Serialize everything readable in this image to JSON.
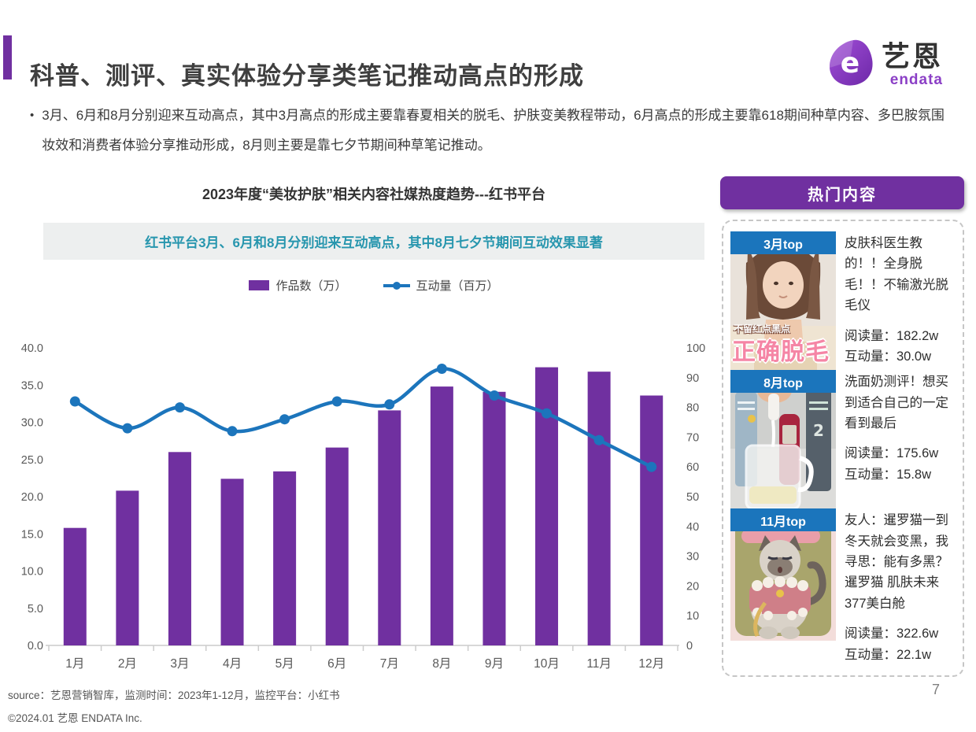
{
  "colors": {
    "accent": "#7030A0",
    "bar": "#7030A0",
    "line": "#1C75BC",
    "badge": "#1B75BC",
    "callout_bg": "#EDEFEF",
    "callout_text": "#2796AE"
  },
  "header": {
    "title": "科普、测评、真实体验分享类笔记推动高点的形成",
    "logo_cn": "艺恩",
    "logo_en": "endata"
  },
  "bullet": {
    "marker": "•",
    "text": "3月、6月和8月分别迎来互动高点，其中3月高点的形成主要靠春夏相关的脱毛、护肤变美教程带动，6月高点的形成主要靠618期间种草内容、多巴胺氛围妆效和消费者体验分享推动形成，8月则主要是靠七夕节期间种草笔记推动。"
  },
  "chart": {
    "title": "2023年度“美妆护肤”相关内容社媒热度趋势---红书平台",
    "callout": "红书平台3月、6月和8月分别迎来互动高点，其中8月七夕节期间互动效果显著",
    "legend_bar": "作品数（万）",
    "legend_line": "互动量（百万）"
  },
  "chart_data": {
    "type": "bar",
    "note": "combo chart: bars on left axis, smoothed line with markers on right axis",
    "categories": [
      "1月",
      "2月",
      "3月",
      "4月",
      "5月",
      "6月",
      "7月",
      "8月",
      "9月",
      "10月",
      "11月",
      "12月"
    ],
    "series": [
      {
        "name": "作品数（万）",
        "type": "bar",
        "axis": "left",
        "values": [
          15.8,
          20.8,
          26.0,
          22.4,
          23.4,
          26.6,
          31.6,
          34.8,
          34.1,
          37.4,
          36.8,
          33.6
        ]
      },
      {
        "name": "互动量（百万）",
        "type": "line",
        "axis": "right",
        "values": [
          82,
          73,
          80,
          72,
          76,
          82,
          81,
          93,
          84,
          78,
          69,
          60
        ]
      }
    ],
    "title": "2023年度“美妆护肤”相关内容社媒热度趋势---红书平台",
    "xlabel": "",
    "ylabel_left": "作品数（万）",
    "ylabel_right": "互动量（百万）",
    "left_axis": {
      "min": 0,
      "max": 40,
      "step": 5,
      "decimals": 1
    },
    "right_axis": {
      "min": 0,
      "max": 100,
      "step": 10,
      "decimals": 0
    },
    "grid": false,
    "legend_position": "top-center"
  },
  "sidebar": {
    "header": "热门内容",
    "cards": [
      {
        "badge": "3月top",
        "thumb": "woman-hair-removal-photo",
        "overlay_line1": "不留红点黑点",
        "overlay_line2": "正确脱毛",
        "title": "皮肤科医生教的！！全身脱毛！！不输激光脱毛仪",
        "reads": "阅读量：182.2w",
        "engagement": "互动量：30.0w"
      },
      {
        "badge": "8月top",
        "thumb": "cleanser-products-photo",
        "title": "洗面奶测评！想买到适合自己的一定看到最后",
        "reads": "阅读量：175.6w",
        "engagement": "互动量：15.8w"
      },
      {
        "badge": "11月top",
        "thumb": "siamese-cat-cartoon",
        "title": "友人：暹罗猫一到冬天就会变黑，我寻思：能有多黑？暹罗猫 肌肤未来377美白舱",
        "reads": "阅读量：322.6w",
        "engagement": "互动量：22.1w"
      }
    ]
  },
  "footer": {
    "source": "source：艺恩营销智库，监测时间：2023年1-12月，监控平台：小红书",
    "copyright": "©2024.01 艺恩 ENDATA Inc.",
    "page_number": "7"
  }
}
